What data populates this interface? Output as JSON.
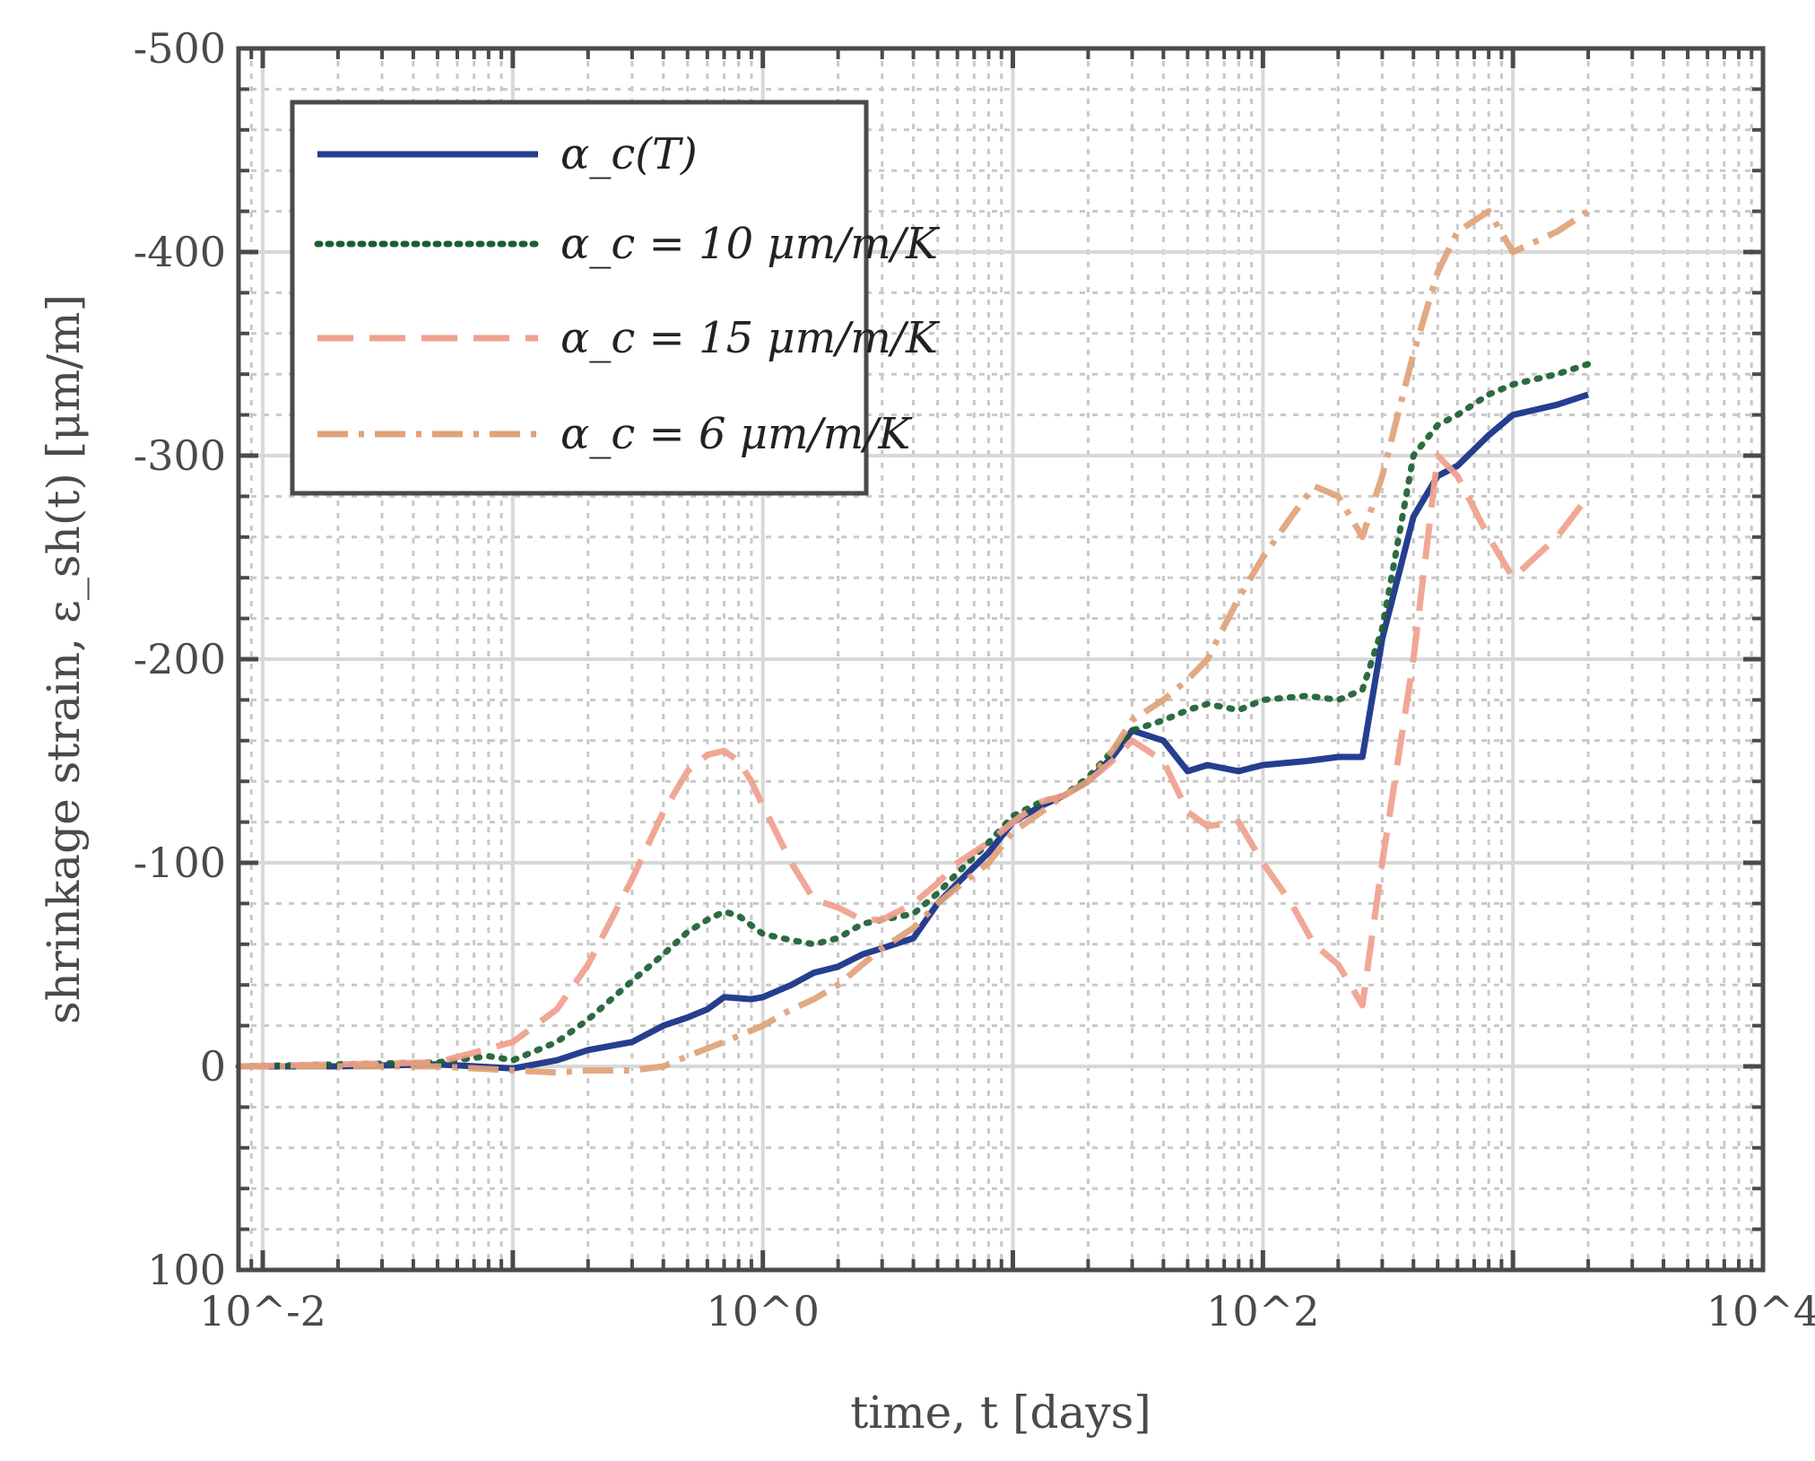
{
  "chart_data": {
    "type": "line",
    "xlabel": "time, t [days]",
    "ylabel": "shrinkage strain, ε_sh(t) [μm/m]",
    "xscale": "log",
    "xlim": [
      0.008,
      10000
    ],
    "ylim": [
      -500,
      100
    ],
    "y_reversed": true,
    "grid": true,
    "legend_position": "top-left",
    "x_tick_labels": [
      "10^-2",
      "10^0",
      "10^2",
      "10^4"
    ],
    "y_ticks": [
      -500,
      -400,
      -300,
      -200,
      -100,
      0,
      100
    ],
    "y_tick_labels": [
      "-500",
      "-400",
      "-300",
      "-200",
      "-100",
      "0",
      "100"
    ],
    "series": [
      {
        "name": "α_c(T)",
        "color": "#253e8f",
        "dash": "solid",
        "x": [
          0.008,
          0.02,
          0.05,
          0.1,
          0.15,
          0.2,
          0.3,
          0.4,
          0.5,
          0.6,
          0.7,
          0.9,
          1.0,
          1.3,
          1.6,
          2.0,
          2.5,
          3.0,
          4.0,
          5.0,
          6.0,
          8.0,
          10,
          13,
          16,
          20,
          25,
          30,
          40,
          50,
          60,
          80,
          100,
          150,
          200,
          250,
          300,
          400,
          500,
          600,
          800,
          1000,
          1500,
          2000
        ],
        "y": [
          0,
          0,
          -1,
          1,
          -3,
          -8,
          -12,
          -20,
          -24,
          -28,
          -34,
          -33,
          -34,
          -40,
          -46,
          -49,
          -55,
          -58,
          -63,
          -80,
          -90,
          -105,
          -120,
          -128,
          -133,
          -140,
          -152,
          -165,
          -160,
          -145,
          -148,
          -145,
          -148,
          -150,
          -152,
          -152,
          -210,
          -270,
          -290,
          -295,
          -310,
          -320,
          -325,
          -330
        ]
      },
      {
        "name": "α_c = 10 μm/m/K",
        "color": "#1b5e32",
        "dash": "dot",
        "x": [
          0.008,
          0.05,
          0.08,
          0.1,
          0.15,
          0.2,
          0.3,
          0.4,
          0.5,
          0.6,
          0.7,
          0.8,
          1.0,
          1.3,
          1.6,
          2.0,
          2.5,
          3.0,
          4.0,
          5.0,
          6.0,
          8.0,
          10,
          13,
          16,
          20,
          25,
          30,
          40,
          50,
          60,
          80,
          100,
          150,
          200,
          250,
          300,
          400,
          500,
          600,
          800,
          1000,
          1500,
          2000
        ],
        "y": [
          0,
          -2,
          -5,
          -3,
          -12,
          -23,
          -42,
          -55,
          -66,
          -72,
          -76,
          -74,
          -65,
          -62,
          -60,
          -63,
          -70,
          -72,
          -75,
          -85,
          -95,
          -110,
          -123,
          -130,
          -133,
          -142,
          -155,
          -165,
          -170,
          -175,
          -178,
          -175,
          -180,
          -182,
          -180,
          -185,
          -215,
          -300,
          -315,
          -320,
          -330,
          -335,
          -340,
          -345
        ]
      },
      {
        "name": "α_c = 15 μm/m/K",
        "color": "#f0a08c",
        "dash": "dash",
        "x": [
          0.008,
          0.05,
          0.1,
          0.15,
          0.2,
          0.3,
          0.4,
          0.5,
          0.6,
          0.7,
          0.8,
          0.9,
          1.0,
          1.3,
          1.6,
          2.0,
          2.5,
          3.0,
          4.0,
          5.0,
          6.0,
          8.0,
          10,
          13,
          16,
          20,
          25,
          30,
          40,
          50,
          60,
          80,
          100,
          130,
          160,
          200,
          250,
          300,
          400,
          500,
          600,
          800,
          1000,
          1500,
          2000
        ],
        "y": [
          0,
          -2,
          -12,
          -28,
          -50,
          -92,
          -125,
          -145,
          -153,
          -155,
          -150,
          -140,
          -128,
          -100,
          -82,
          -78,
          -72,
          -72,
          -80,
          -90,
          -100,
          -110,
          -120,
          -130,
          -133,
          -140,
          -150,
          -160,
          -150,
          -125,
          -118,
          -120,
          -100,
          -80,
          -60,
          -50,
          -30,
          -100,
          -200,
          -300,
          -290,
          -260,
          -240,
          -260,
          -280
        ]
      },
      {
        "name": "α_c = 6 μm/m/K",
        "color": "#e0a278",
        "dash": "dashdot",
        "x": [
          0.008,
          0.05,
          0.1,
          0.15,
          0.2,
          0.3,
          0.4,
          0.5,
          0.7,
          1.0,
          1.3,
          1.6,
          2.0,
          2.5,
          3.0,
          4.0,
          5.0,
          6.0,
          8.0,
          10,
          13,
          16,
          20,
          25,
          30,
          40,
          50,
          60,
          80,
          100,
          130,
          160,
          200,
          250,
          300,
          400,
          500,
          600,
          800,
          1000,
          1500,
          2000
        ],
        "y": [
          0,
          0,
          2,
          3,
          2,
          2,
          0,
          -5,
          -12,
          -20,
          -28,
          -33,
          -40,
          -50,
          -58,
          -68,
          -80,
          -88,
          -100,
          -115,
          -125,
          -133,
          -140,
          -155,
          -170,
          -180,
          -190,
          -200,
          -230,
          -250,
          -270,
          -285,
          -280,
          -260,
          -290,
          -350,
          -390,
          -410,
          -420,
          -400,
          -410,
          -420
        ]
      }
    ]
  }
}
